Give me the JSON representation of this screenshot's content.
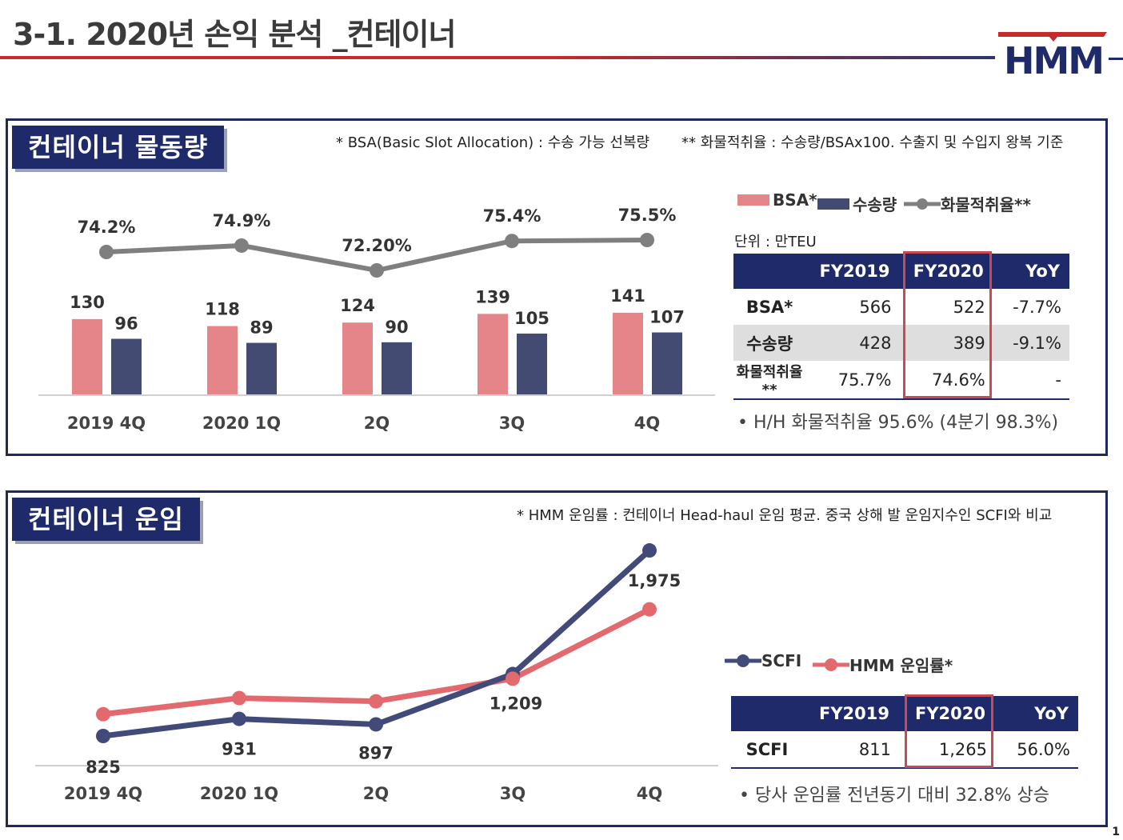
{
  "page": {
    "title": "3-1. 2020년 손익 분석 _컨테이너",
    "logo_text": "HMM",
    "page_number": "1"
  },
  "volume": {
    "label": "컨테이너 물동량",
    "note_bsa": "* BSA(Basic Slot Allocation) : 수송 가능 선복량",
    "note_ratio": "** 화물적취율 : 수송량/BSAx100. 수출지 및 수입지 왕복 기준",
    "legend": {
      "bsa": "BSA*",
      "volume": "수송량",
      "ratio": "화물적취율**"
    },
    "unit": "단위 : 만TEU",
    "table": {
      "headers": [
        "",
        "FY2019",
        "FY2020",
        "YoY"
      ],
      "rows": [
        [
          "BSA*",
          "566",
          "522",
          "-7.7%"
        ],
        [
          "수송량",
          "428",
          "389",
          "-9.1%"
        ],
        [
          "화물적취율**",
          "75.7%",
          "74.6%",
          "-"
        ]
      ]
    },
    "bullet": "• H/H 화물적취율 95.6% (4분기 98.3%)"
  },
  "rate": {
    "label": "컨테이너 운임",
    "note": "* HMM 운임률 : 컨테이너 Head-haul 운임 평균. 중국 상해 발 운임지수인 SCFI와 비교",
    "legend": {
      "scfi": "SCFI",
      "hmm": "HMM 운임률*"
    },
    "table": {
      "headers": [
        "",
        "FY2019",
        "FY2020",
        "YoY"
      ],
      "rows": [
        [
          "SCFI",
          "811",
          "1,265",
          "56.0%"
        ]
      ]
    },
    "bullet": "• 당사 운임률 전년동기 대비 32.8% 상승"
  },
  "colors": {
    "navy": "#1f2a6b",
    "bsa_bar": "#e5858a",
    "volume_bar": "#444b73",
    "ratio_line": "#7f7f7f",
    "scfi_line": "#414a78",
    "hmm_line": "#e26a6e",
    "highlight_box": "#c94a50"
  },
  "chart_data": [
    {
      "type": "bar",
      "categories": [
        "2019 4Q",
        "2020 1Q",
        "2Q",
        "3Q",
        "4Q"
      ],
      "series": [
        {
          "name": "BSA*",
          "values": [
            130,
            118,
            124,
            139,
            141
          ],
          "labels": [
            "130",
            "118",
            "124",
            "139",
            "141"
          ]
        },
        {
          "name": "수송량",
          "values": [
            96,
            89,
            90,
            105,
            107
          ],
          "labels": [
            "96",
            "89",
            "90",
            "105",
            "107"
          ]
        }
      ],
      "line_series": [
        {
          "name": "화물적취율**",
          "values": [
            74.2,
            74.9,
            72.2,
            75.4,
            75.5
          ],
          "labels": [
            "74.2%",
            "74.9%",
            "72.20%",
            "75.4%",
            "75.5%"
          ]
        }
      ],
      "ylim": [
        0,
        160
      ],
      "line_ylim": [
        60,
        80
      ],
      "grid": false,
      "legend_position": "top-right"
    },
    {
      "type": "line",
      "categories": [
        "2019 4Q",
        "2020 1Q",
        "2Q",
        "3Q",
        "4Q"
      ],
      "series": [
        {
          "name": "SCFI",
          "values": [
            825,
            931,
            897,
            1209,
            1975
          ],
          "labels": [
            "825",
            "931",
            "897",
            "1,209",
            "1,975"
          ]
        },
        {
          "name": "HMM 운임률*",
          "values": [
            960,
            1060,
            1040,
            1180,
            1610
          ],
          "labels": []
        }
      ],
      "ylim": [
        600,
        2100
      ],
      "grid": false,
      "legend_position": "right"
    }
  ]
}
